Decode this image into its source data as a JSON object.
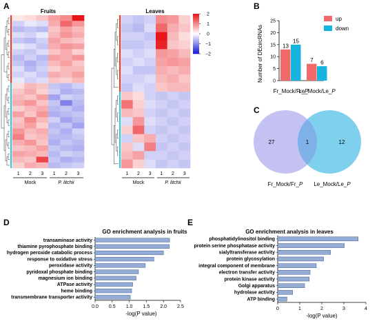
{
  "panels": {
    "A": "A",
    "B": "B",
    "C": "C",
    "D": "D",
    "E": "E"
  },
  "colors": {
    "up": "#f26b6b",
    "down": "#18b4e0",
    "venn_left": "#c4c2f2",
    "venn_right": "#7fd0ec",
    "venn_overlap": "#7fb0e8",
    "go_bar": "#95acd4",
    "go_bar_edge": "#3f5a8c",
    "heat_high": "#e8161b",
    "heat_mid": "#ffffff",
    "heat_low": "#1a1ad6",
    "cluster_red": "#ee3a2e",
    "cluster_cyan": "#3cc4d8"
  },
  "chart_data": [
    {
      "id": "A-fruits",
      "type": "heatmap",
      "title": "Fruits",
      "columns": [
        "1",
        "2",
        "3",
        "1",
        "2",
        "3"
      ],
      "groups": [
        "Mock",
        "P. litchii"
      ],
      "values": [
        [
          0.2,
          0.3,
          0.5,
          0.8,
          1.0,
          2.2
        ],
        [
          -0.4,
          -0.2,
          -0.3,
          0.7,
          1.3,
          0.9
        ],
        [
          -0.6,
          -0.5,
          -0.6,
          0.5,
          0.8,
          0.6
        ],
        [
          -0.3,
          -0.4,
          -0.2,
          0.6,
          0.9,
          0.7
        ],
        [
          -0.5,
          -0.6,
          -0.4,
          0.8,
          0.6,
          0.5
        ],
        [
          -0.2,
          -0.3,
          -0.5,
          0.7,
          0.9,
          0.8
        ],
        [
          -0.4,
          -0.5,
          -0.3,
          0.5,
          0.7,
          0.4
        ],
        [
          -0.6,
          -0.4,
          -0.6,
          0.8,
          0.7,
          0.9
        ],
        [
          -0.5,
          -0.7,
          -0.5,
          0.6,
          0.8,
          0.5
        ],
        [
          -0.3,
          -0.6,
          -0.4,
          0.4,
          0.6,
          0.6
        ],
        [
          -0.4,
          -0.3,
          -0.5,
          0.7,
          0.6,
          0.8
        ],
        [
          -0.2,
          -0.4,
          -0.3,
          0.5,
          0.4,
          0.6
        ],
        [
          0.3,
          0.6,
          0.5,
          -0.5,
          -0.6,
          -0.4
        ],
        [
          0.5,
          0.7,
          0.4,
          -0.4,
          -0.7,
          -0.6
        ],
        [
          0.6,
          0.5,
          0.8,
          -0.8,
          -0.4,
          -0.5
        ],
        [
          0.7,
          0.9,
          0.5,
          -0.5,
          -1.1,
          -0.6
        ],
        [
          0.4,
          0.6,
          0.7,
          -0.6,
          -0.5,
          -0.7
        ],
        [
          0.8,
          0.5,
          0.9,
          -0.7,
          -0.6,
          -0.5
        ],
        [
          0.5,
          1.0,
          0.6,
          -0.4,
          -0.8,
          -0.6
        ],
        [
          0.6,
          0.8,
          0.4,
          -0.6,
          -0.5,
          -0.8
        ],
        [
          0.9,
          0.6,
          0.7,
          -0.5,
          -0.7,
          -0.4
        ],
        [
          1.1,
          0.5,
          0.6,
          -0.6,
          -0.6,
          -0.5
        ],
        [
          0.7,
          0.9,
          0.5,
          -0.7,
          -0.5,
          -0.6
        ],
        [
          0.5,
          0.6,
          0.8,
          -0.5,
          -0.6,
          -0.7
        ],
        [
          0.8,
          0.7,
          0.6,
          -0.6,
          -0.4,
          -0.5
        ],
        [
          0.6,
          0.5,
          1.6,
          -0.5,
          -0.7,
          -0.6
        ],
        [
          0.4,
          0.7,
          0.6,
          -0.6,
          -0.5,
          -0.4
        ]
      ],
      "col_labels": [
        "1",
        "2",
        "3",
        "1",
        "2",
        "3"
      ],
      "group_labels": [
        "Mock",
        "P. litchii"
      ]
    },
    {
      "id": "A-leaves",
      "type": "heatmap",
      "title": "Leaves",
      "colorbar": {
        "ticks": [
          "2",
          "1",
          "0",
          "−1",
          "−2"
        ],
        "range": [
          -2,
          2
        ]
      },
      "values": [
        [
          -0.4,
          -0.5,
          -0.4,
          1.0,
          0.9,
          0.4
        ],
        [
          -0.5,
          -0.6,
          -0.3,
          1.3,
          0.7,
          0.5
        ],
        [
          -0.4,
          -0.4,
          -0.5,
          2.0,
          0.6,
          0.3
        ],
        [
          -0.5,
          -0.5,
          -0.4,
          1.9,
          0.5,
          0.4
        ],
        [
          -0.3,
          -0.4,
          -0.3,
          0.9,
          0.8,
          0.6
        ],
        [
          -0.4,
          -0.3,
          -0.4,
          0.8,
          0.9,
          0.8
        ],
        [
          -0.3,
          -0.5,
          -0.5,
          0.7,
          0.6,
          0.7
        ],
        [
          -0.4,
          -0.4,
          -0.3,
          0.6,
          0.7,
          0.5
        ],
        [
          -0.5,
          -0.3,
          -0.4,
          0.5,
          0.6,
          0.6
        ],
        [
          0.5,
          0.3,
          -0.4,
          -0.5,
          -0.4,
          -0.5
        ],
        [
          1.2,
          0.4,
          -0.3,
          -0.4,
          -0.5,
          -0.4
        ],
        [
          0.6,
          0.5,
          -0.4,
          -0.5,
          -0.4,
          -0.5
        ],
        [
          -0.3,
          0.9,
          -0.3,
          -0.4,
          -0.5,
          -0.4
        ],
        [
          0.4,
          1.3,
          -0.4,
          -0.5,
          -0.4,
          -0.5
        ],
        [
          -0.4,
          0.5,
          0.7,
          -0.4,
          -0.5,
          -0.4
        ],
        [
          0.5,
          -0.3,
          1.1,
          -0.5,
          -0.4,
          -0.5
        ],
        [
          0.6,
          0.8,
          -0.4,
          -0.4,
          -0.5,
          -0.4
        ],
        [
          0.9,
          0.4,
          -0.3,
          -0.5,
          -0.4,
          -0.5
        ]
      ],
      "col_labels": [
        "1",
        "2",
        "3",
        "1",
        "2",
        "3"
      ],
      "group_labels": [
        "Mock",
        "P. litchii"
      ]
    },
    {
      "id": "B",
      "type": "bar",
      "ylabel": "Number of DEcircRNAs",
      "ylim": [
        0,
        25
      ],
      "yticks": [
        "0",
        "5",
        "10",
        "15",
        "20",
        "25"
      ],
      "categories": [
        "Fr_Mock/Fr_P",
        "Le_Mock/Le_P"
      ],
      "category_labels": [
        {
          "a": "Fr_Mock/Fr_",
          "b": "P"
        },
        {
          "a": "Le_Mock/Le_",
          "b": "P"
        }
      ],
      "series": [
        {
          "name": "up",
          "values": [
            13,
            7
          ]
        },
        {
          "name": "down",
          "values": [
            15,
            6
          ]
        }
      ],
      "legend": "top-right"
    },
    {
      "id": "C",
      "type": "venn",
      "sets": [
        {
          "label_a": "Fr_Mock/Fr_",
          "label_b": "P",
          "only": "27"
        },
        {
          "label_a": "Le_Mock/Le_",
          "label_b": "P",
          "only": "12"
        }
      ],
      "overlap": "1"
    },
    {
      "id": "D",
      "type": "bar",
      "orientation": "horizontal",
      "title": "GO enrichment  analysis in fruits",
      "xlabel": "-log(P value)",
      "xlim": [
        0,
        2.5
      ],
      "xticks": [
        "0.0",
        "0.5",
        "1.0",
        "1.5",
        "2.0",
        "2.5"
      ],
      "categories": [
        "transaminase activity",
        "thiamine pyrophosphate binding",
        "hydrogen peroxide catabolic process",
        "response to oxidative stress",
        "peroxidase activity",
        "pyridoxal phosphate binding",
        "magnesium ion binding",
        "ATPase activity",
        "heme binding",
        "transmembrane transporter activity"
      ],
      "values": [
        2.18,
        2.17,
        2.0,
        1.72,
        1.47,
        1.27,
        1.2,
        1.1,
        1.07,
        1.03
      ]
    },
    {
      "id": "E",
      "type": "bar",
      "orientation": "horizontal",
      "title": "GO enrichment analysis in leaves",
      "xlabel": "-log(P value)",
      "xlim": [
        0,
        4
      ],
      "xticks": [
        "0",
        "1",
        "2",
        "3",
        "4"
      ],
      "categories": [
        "phosphatidylinositol binding",
        "protein serine phosphatase activity",
        "sialyltransferase activity",
        "protein glycosylation",
        "integral component of membrane",
        "electron transfer activity",
        "protein kinase activity",
        "Golgi apparatus",
        "hydrolase activity",
        "ATP binding"
      ],
      "values": [
        3.65,
        3.02,
        2.4,
        2.08,
        1.75,
        1.47,
        1.43,
        1.22,
        0.68,
        0.42
      ]
    }
  ]
}
